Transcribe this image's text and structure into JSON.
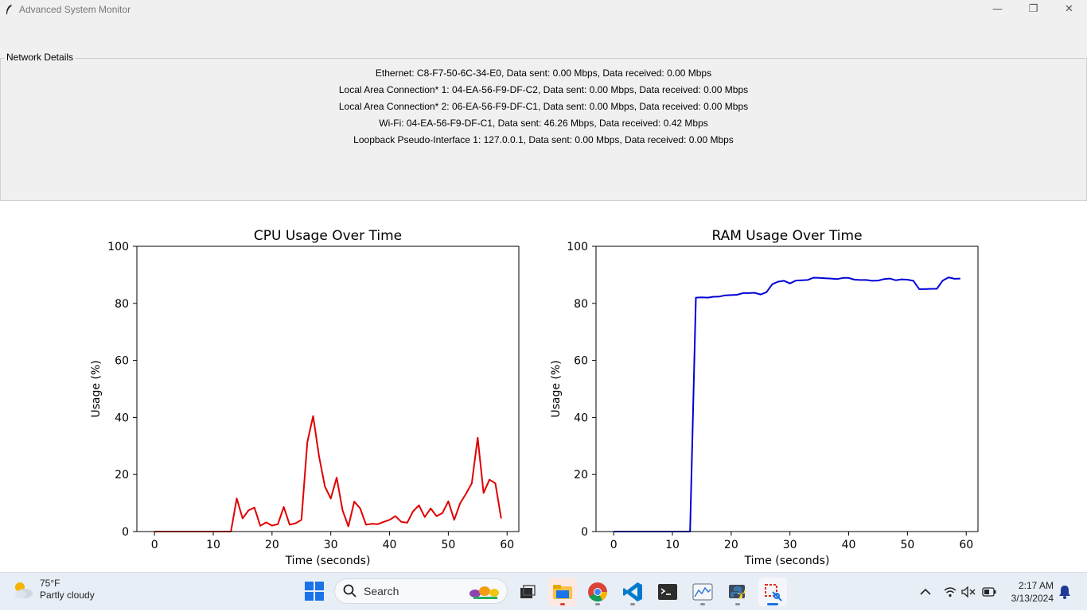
{
  "window": {
    "title": "Advanced System Monitor",
    "controls": {
      "minimize": "—",
      "restore": "❐",
      "close": "✕"
    }
  },
  "network": {
    "frame_label": "Network Details",
    "lines": [
      "Ethernet: C8-F7-50-6C-34-E0, Data sent: 0.00 Mbps, Data received: 0.00 Mbps",
      "Local Area Connection* 1: 04-EA-56-F9-DF-C2, Data sent: 0.00 Mbps, Data received: 0.00 Mbps",
      "Local Area Connection* 2: 06-EA-56-F9-DF-C1, Data sent: 0.00 Mbps, Data received: 0.00 Mbps",
      "Wi-Fi: 04-EA-56-F9-DF-C1, Data sent: 46.26 Mbps, Data received: 0.42 Mbps",
      "Loopback Pseudo-Interface 1: 127.0.0.1, Data sent: 0.00 Mbps, Data received: 0.00 Mbps"
    ]
  },
  "chart_data": [
    {
      "type": "line",
      "title": "CPU Usage Over Time",
      "xlabel": "Time (seconds)",
      "ylabel": "Usage (%)",
      "xlim": [
        -3,
        62
      ],
      "ylim": [
        0,
        100
      ],
      "xticks": [
        0,
        10,
        20,
        30,
        40,
        50,
        60
      ],
      "yticks": [
        0,
        20,
        40,
        60,
        80,
        100
      ],
      "color": "#e00000",
      "series": [
        {
          "x": [
            0,
            1,
            2,
            3,
            4,
            5,
            6,
            7,
            8,
            9,
            10,
            11,
            12,
            13,
            14,
            15,
            16,
            17,
            18,
            19,
            20,
            21,
            22,
            23,
            24,
            25,
            26,
            27,
            28,
            29,
            30,
            31,
            32,
            33,
            34,
            35,
            36,
            37,
            38,
            39,
            40,
            41,
            42,
            43,
            44,
            45,
            46,
            47,
            48,
            49,
            50,
            51,
            52,
            53,
            54,
            55,
            56,
            57,
            58,
            59
          ],
          "values": [
            0,
            0,
            0,
            0,
            0,
            0,
            0,
            0,
            0,
            0,
            0,
            0,
            0,
            0,
            11.6,
            4.6,
            7.4,
            8.4,
            2.0,
            3.2,
            2.1,
            2.6,
            8.6,
            2.4,
            2.9,
            4.1,
            31.3,
            40.5,
            26.4,
            15.8,
            11.6,
            18.9,
            7.4,
            1.8,
            10.5,
            8.1,
            2.4,
            2.7,
            2.6,
            3.4,
            4.1,
            5.4,
            3.4,
            3.1,
            7.1,
            9.2,
            5.1,
            8.1,
            5.4,
            6.5,
            10.6,
            4.1,
            9.9,
            13.2,
            16.9,
            32.9,
            13.5,
            18.2,
            16.9,
            4.6
          ]
        }
      ]
    },
    {
      "type": "line",
      "title": "RAM Usage Over Time",
      "xlabel": "Time (seconds)",
      "ylabel": "Usage (%)",
      "xlim": [
        -3,
        62
      ],
      "ylim": [
        0,
        100
      ],
      "xticks": [
        0,
        10,
        20,
        30,
        40,
        50,
        60
      ],
      "yticks": [
        0,
        20,
        40,
        60,
        80,
        100
      ],
      "color": "#0000d8",
      "series": [
        {
          "x": [
            0,
            1,
            2,
            3,
            4,
            5,
            6,
            7,
            8,
            9,
            10,
            11,
            12,
            13,
            14,
            15,
            16,
            17,
            18,
            19,
            20,
            21,
            22,
            23,
            24,
            25,
            26,
            27,
            28,
            29,
            30,
            31,
            32,
            33,
            34,
            35,
            36,
            37,
            38,
            39,
            40,
            41,
            42,
            43,
            44,
            45,
            46,
            47,
            48,
            49,
            50,
            51,
            52,
            53,
            54,
            55,
            56,
            57,
            58,
            59
          ],
          "values": [
            0,
            0,
            0,
            0,
            0,
            0,
            0,
            0,
            0,
            0,
            0,
            0,
            0,
            0,
            82.0,
            82.1,
            82.0,
            82.3,
            82.4,
            82.8,
            82.9,
            83.0,
            83.6,
            83.6,
            83.7,
            83.1,
            83.9,
            86.7,
            87.6,
            87.9,
            87.0,
            88.0,
            88.1,
            88.2,
            89.0,
            88.9,
            88.8,
            88.7,
            88.5,
            88.9,
            88.9,
            88.3,
            88.2,
            88.2,
            87.9,
            88.0,
            88.5,
            88.7,
            88.1,
            88.4,
            88.3,
            87.9,
            85.0,
            85.0,
            85.1,
            85.1,
            88.0,
            89.1,
            88.6,
            88.7
          ]
        }
      ]
    }
  ],
  "taskbar": {
    "weather_temp": "75°F",
    "weather_desc": "Partly cloudy",
    "search_placeholder": "Search",
    "time": "2:17 AM",
    "date": "3/13/2024"
  }
}
